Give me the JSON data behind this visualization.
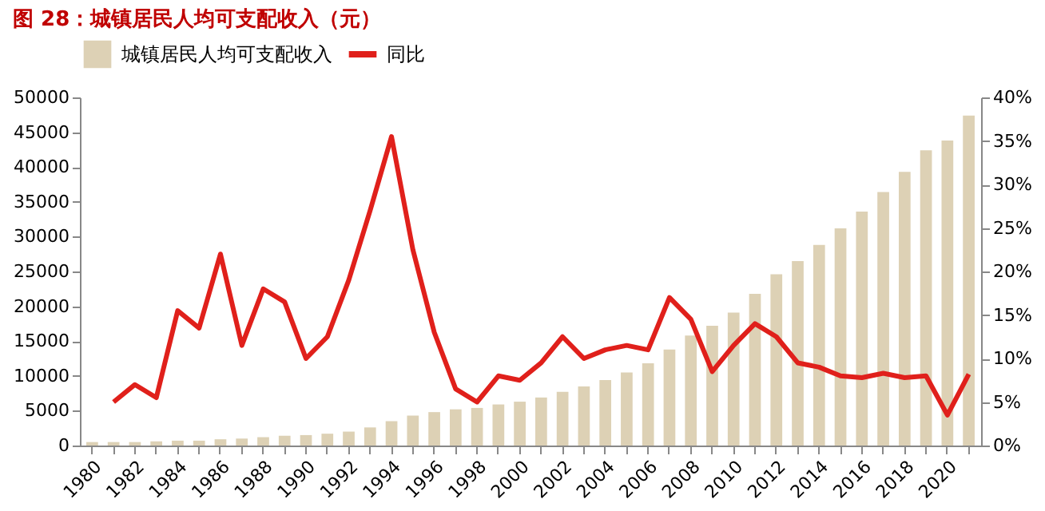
{
  "chart_data": {
    "type": "bar",
    "title": "图 28：城镇居民人均可支配收入（元）",
    "categories": [
      "1980",
      null,
      "1982",
      null,
      "1984",
      null,
      "1986",
      null,
      "1988",
      null,
      "1990",
      null,
      "1992",
      null,
      "1994",
      null,
      "1996",
      null,
      "1998",
      null,
      "2000",
      null,
      "2002",
      null,
      "2004",
      null,
      "2006",
      null,
      "2008",
      null,
      "2010",
      null,
      "2012",
      null,
      "2014",
      null,
      "2016",
      null,
      "2018",
      null,
      "2020",
      null
    ],
    "series": [
      {
        "name": "城镇居民人均可支配收入",
        "color": "#ddd1b5",
        "values": [
          500,
          500,
          500,
          600,
          700,
          700,
          900,
          1000,
          1200,
          1400,
          1500,
          1700,
          2000,
          2600,
          3500,
          4300,
          4800,
          5200,
          5400,
          5900,
          6300,
          6900,
          7700,
          8500,
          9400,
          10500,
          11800,
          13800,
          15800,
          17200,
          19100,
          21800,
          24600,
          26500,
          28800,
          31200,
          33600,
          36400,
          39300,
          42400,
          43800,
          47400
        ]
      },
      {
        "name": "同比",
        "type": "line",
        "axis": "y2",
        "color": "#e0201b",
        "values": [
          null,
          5,
          7,
          5.5,
          15.5,
          13.5,
          22,
          11.5,
          18,
          16.5,
          10,
          12.5,
          19,
          27,
          35.5,
          22.5,
          13,
          6.5,
          5,
          8,
          7.5,
          9.5,
          12.5,
          10,
          11,
          11.5,
          11,
          17,
          14.5,
          8.5,
          11.5,
          14,
          12.5,
          9.5,
          9,
          8,
          7.8,
          8.3,
          7.8,
          8,
          3.5,
          8.2
        ]
      }
    ],
    "ylim": [
      0,
      50000
    ],
    "yticks": [
      0,
      5000,
      10000,
      15000,
      20000,
      25000,
      30000,
      35000,
      40000,
      45000,
      50000
    ],
    "y2lim": [
      0,
      40
    ],
    "y2ticks": [
      {
        "value": 0,
        "label": "0%"
      },
      {
        "value": 5,
        "label": "5%"
      },
      {
        "value": 10,
        "label": "10%"
      },
      {
        "value": 15,
        "label": "15%"
      },
      {
        "value": 20,
        "label": "20%"
      },
      {
        "value": 25,
        "label": "25%"
      },
      {
        "value": 30,
        "label": "30%"
      },
      {
        "value": 35,
        "label": "35%"
      },
      {
        "value": 40,
        "label": "40%"
      }
    ],
    "legend": "top",
    "grid": false
  }
}
